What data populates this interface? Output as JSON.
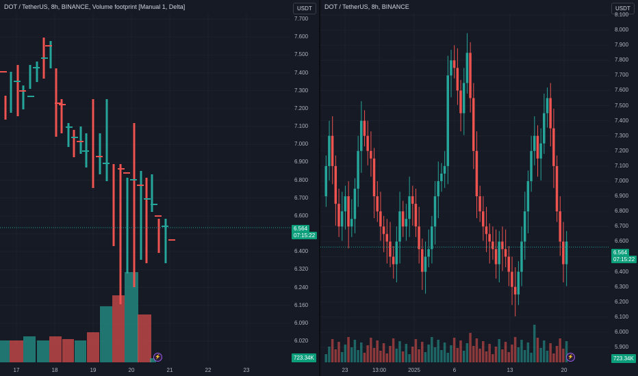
{
  "left_chart": {
    "title": "DOT / TetherUS, 8h, BINANCE, Volume footprint [Manual 1, Delta]",
    "currency_button": "USDT",
    "price_ticks": [
      "7.700",
      "7.600",
      "7.500",
      "7.400",
      "7.300",
      "7.200",
      "7.100",
      "7.000",
      "6.900",
      "6.800",
      "6.700",
      "6.600",
      "6.500",
      "6.400",
      "6.320",
      "6.240",
      "6.160",
      "6.090",
      "6.020"
    ],
    "time_ticks": [
      "17",
      "18",
      "19",
      "20",
      "21",
      "22",
      "23"
    ],
    "last_price": "6.564",
    "countdown": "07:15:22",
    "volume_value": "723.34K",
    "flash_icon": "⚡"
  },
  "right_chart": {
    "title": "DOT / TetherUS, 8h, BINANCE",
    "currency_button": "USDT",
    "price_ticks": [
      "8.100",
      "8.000",
      "7.900",
      "7.800",
      "7.700",
      "7.600",
      "7.500",
      "7.400",
      "7.300",
      "7.200",
      "7.100",
      "7.000",
      "6.900",
      "6.800",
      "6.700",
      "6.600",
      "6.500",
      "6.400",
      "6.300",
      "6.200",
      "6.100",
      "6.000",
      "5.900"
    ],
    "time_ticks": [
      "23",
      "13:00",
      "2025",
      "6",
      "13",
      "20"
    ],
    "last_price": "6.564",
    "countdown": "07:15:22",
    "volume_value": "723.34K",
    "flash_icon": "⚡"
  },
  "colors": {
    "up": "#26a69a",
    "down": "#ef5350",
    "background": "#161a25",
    "accent": "#0d9e7c"
  }
}
